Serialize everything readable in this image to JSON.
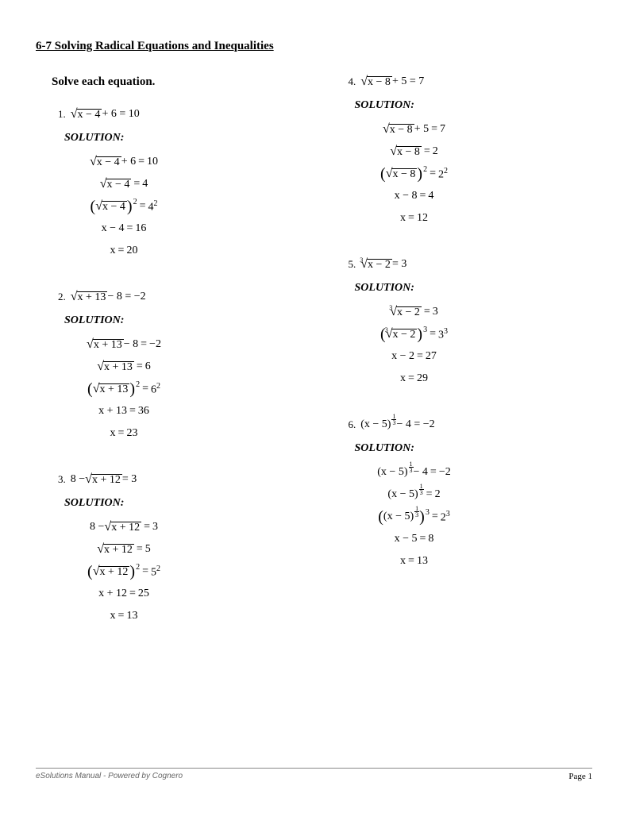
{
  "title": "6-7 Solving Radical Equations and Inequalities",
  "instruction": "Solve each equation.",
  "solution_label": "SOLUTION:",
  "problems": {
    "p1": {
      "num": "1.",
      "eq_rad": "x − 4",
      "eq_tail": " + 6 = 10",
      "steps": [
        {
          "lhs_rad": "x − 4",
          "lhs_tail": " + 6",
          "rhs": "10"
        },
        {
          "lhs_rad": "x − 4",
          "lhs_tail": "",
          "rhs": "4"
        },
        {
          "paren_rad": "x − 4",
          "paren_exp": "2",
          "rhs_base": "4",
          "rhs_exp": "2"
        },
        {
          "plain_lhs": "x − 4",
          "rhs": "16"
        },
        {
          "plain_lhs": "x",
          "rhs": "20"
        }
      ]
    },
    "p2": {
      "num": "2.",
      "eq_rad": "x + 13",
      "eq_tail": " − 8 = −2",
      "steps": [
        {
          "lhs_rad": "x + 13",
          "lhs_tail": " − 8",
          "rhs": "−2"
        },
        {
          "lhs_rad": "x + 13",
          "lhs_tail": "",
          "rhs": "6"
        },
        {
          "paren_rad": "x + 13",
          "paren_exp": "2",
          "rhs_base": "6",
          "rhs_exp": "2"
        },
        {
          "plain_lhs": "x + 13",
          "rhs": "36"
        },
        {
          "plain_lhs": "x",
          "rhs": "23"
        }
      ]
    },
    "p3": {
      "num": "3.",
      "eq_pre": "8 − ",
      "eq_rad": "x + 12",
      "eq_tail": " = 3",
      "steps": [
        {
          "lhs_pre": "8 − ",
          "lhs_rad": "x + 12",
          "lhs_tail": "",
          "rhs": "3"
        },
        {
          "lhs_rad": "x + 12",
          "lhs_tail": "",
          "rhs": "5"
        },
        {
          "paren_rad": "x + 12",
          "paren_exp": "2",
          "rhs_base": "5",
          "rhs_exp": "2"
        },
        {
          "plain_lhs": "x + 12",
          "rhs": "25"
        },
        {
          "plain_lhs": "x",
          "rhs": "13"
        }
      ]
    },
    "p4": {
      "num": "4.",
      "eq_rad": "x − 8",
      "eq_tail": " + 5 = 7",
      "steps": [
        {
          "lhs_rad": "x − 8",
          "lhs_tail": " + 5",
          "rhs": "7"
        },
        {
          "lhs_rad": "x − 8",
          "lhs_tail": "",
          "rhs": "2"
        },
        {
          "paren_rad": "x − 8",
          "paren_exp": "2",
          "rhs_base": "2",
          "rhs_exp": "2"
        },
        {
          "plain_lhs": "x − 8",
          "rhs": "4"
        },
        {
          "plain_lhs": "x",
          "rhs": "12"
        }
      ]
    },
    "p5": {
      "num": "5.",
      "cube": true,
      "eq_rad": "x − 2",
      "eq_tail": " = 3",
      "steps": [
        {
          "cube": true,
          "lhs_rad": "x − 2",
          "lhs_tail": "",
          "rhs": "3"
        },
        {
          "cube": true,
          "paren_rad": "x − 2",
          "paren_exp": "3",
          "rhs_base": "3",
          "rhs_exp": "3"
        },
        {
          "plain_lhs": "x − 2",
          "rhs": "27"
        },
        {
          "plain_lhs": "x",
          "rhs": "29"
        }
      ]
    },
    "p6": {
      "num": "6.",
      "frac_base": "(x − 5)",
      "frac_num": "1",
      "frac_den": "3",
      "eq_tail": " − 4 = −2",
      "steps": [
        {
          "frac_base": "(x − 5)",
          "frac_num": "1",
          "frac_den": "3",
          "lhs_tail": " − 4",
          "rhs": "−2"
        },
        {
          "frac_base": "(x − 5)",
          "frac_num": "1",
          "frac_den": "3",
          "lhs_tail": "",
          "rhs": "2"
        },
        {
          "paren_frac_base": "(x − 5)",
          "frac_num": "1",
          "frac_den": "3",
          "paren_exp": "3",
          "rhs_base": "2",
          "rhs_exp": "3"
        },
        {
          "plain_lhs": "x − 5",
          "rhs": "8"
        },
        {
          "plain_lhs": "x",
          "rhs": "13"
        }
      ]
    }
  },
  "footer_left": "eSolutions Manual - Powered by Cognero",
  "footer_right": "Page 1"
}
